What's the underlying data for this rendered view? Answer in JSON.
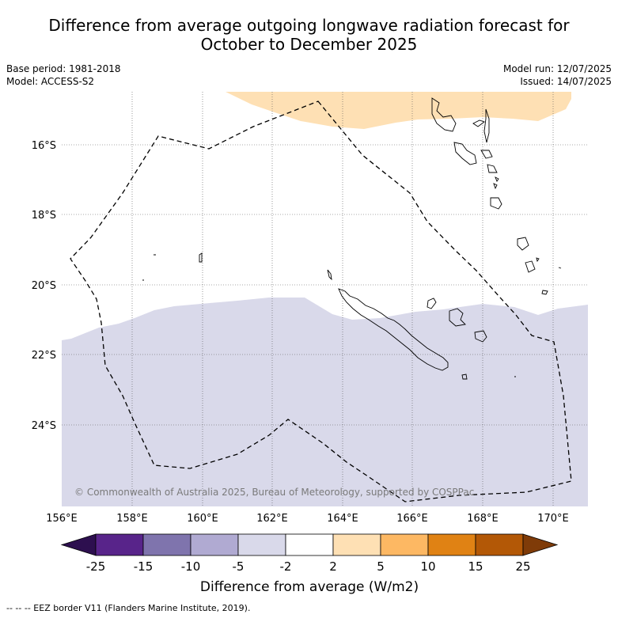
{
  "title_line1": "Difference from average outgoing longwave radiation forecast for",
  "title_line2": "October to December 2025",
  "base_period": "Base period: 1981-2018",
  "model": "Model: ACCESS-S2",
  "model_run": "Model run: 12/07/2025",
  "issued": "Issued: 14/07/2025",
  "copyright": "© Commonwealth of Australia 2025, Bureau of Meteorology, supported by COSPPac",
  "footer_note": "--  --  -- EEZ border V11 (Flanders Marine Institute, 2019).",
  "colorbar": {
    "label": "Difference from average (W/m2)",
    "ticks": [
      "-25",
      "-15",
      "-10",
      "-5",
      "-2",
      "2",
      "5",
      "10",
      "15",
      "25"
    ],
    "colors": [
      "#2d0f4f",
      "#58248a",
      "#7f74ad",
      "#b0aad2",
      "#d9d9ea",
      "#ffffff",
      "#fee0b4",
      "#fdb863",
      "#e08214",
      "#b35806",
      "#7f3b08"
    ]
  },
  "map": {
    "lon_range": [
      156,
      171
    ],
    "lat_range": [
      -26.25,
      -14.5
    ],
    "lon_ticks": [
      "156°E",
      "158°E",
      "160°E",
      "162°E",
      "164°E",
      "166°E",
      "168°E",
      "170°E"
    ],
    "lat_ticks": [
      "16°S",
      "18°S",
      "20°S",
      "22°S",
      "24°S"
    ],
    "positive_region_color": "#fee0b4",
    "negative_region_color": "#d9d9ea"
  }
}
